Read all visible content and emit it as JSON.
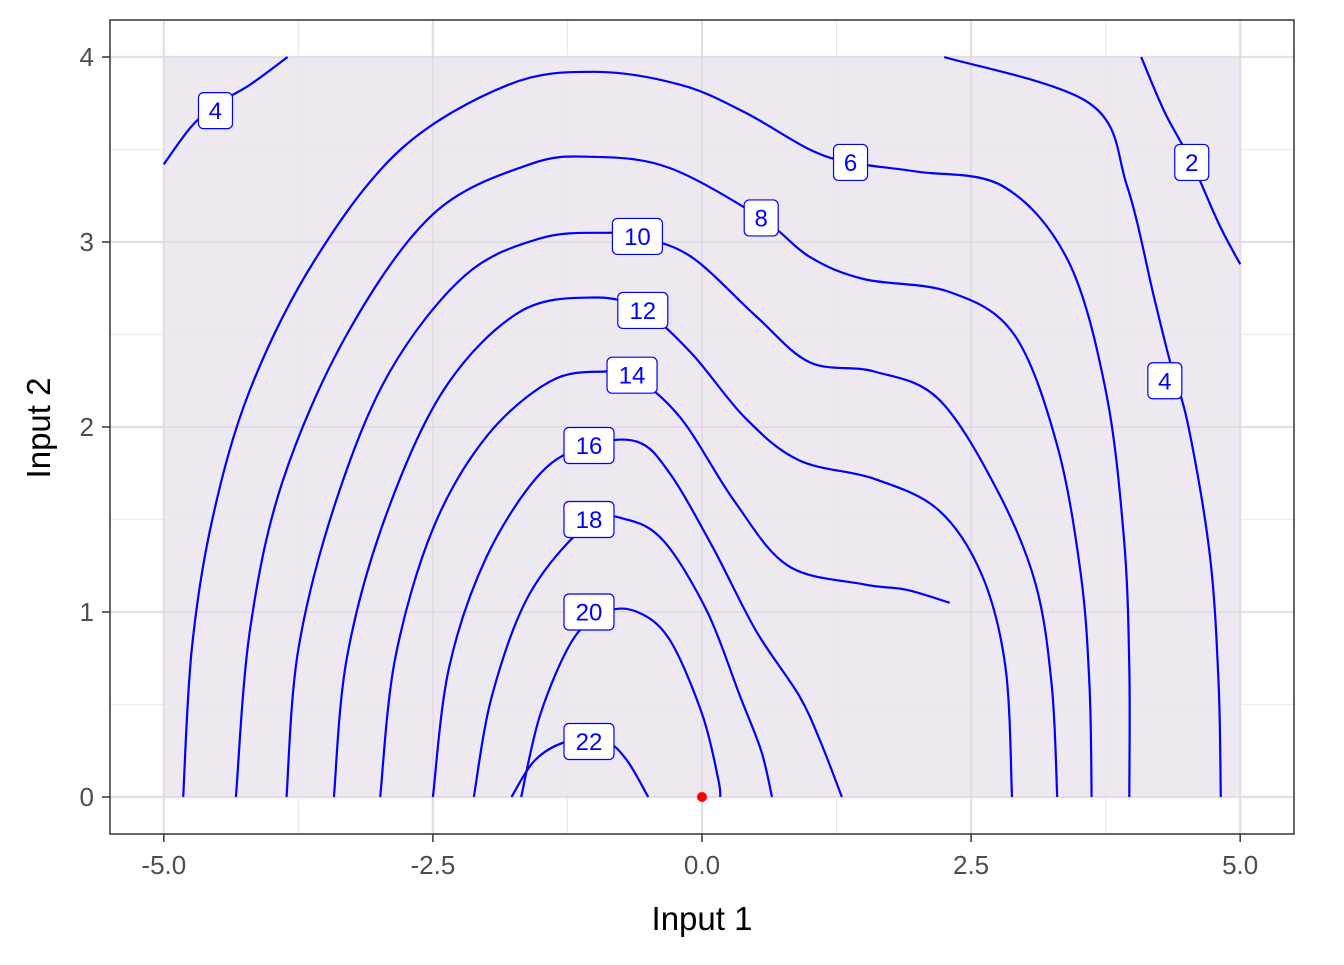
{
  "chart_data": {
    "type": "contour",
    "title": "",
    "xlabel": "Input 1",
    "ylabel": "Input 2",
    "xlim": [
      -5.5,
      5.5
    ],
    "ylim": [
      -0.2,
      4.2
    ],
    "region": {
      "x": [
        -5,
        5
      ],
      "y": [
        0,
        4
      ]
    },
    "x_ticks": [
      {
        "value": -5,
        "label": "-5.0"
      },
      {
        "value": -2.5,
        "label": "-2.5"
      },
      {
        "value": 0,
        "label": "0.0"
      },
      {
        "value": 2.5,
        "label": "2.5"
      },
      {
        "value": 5,
        "label": "5.0"
      }
    ],
    "y_ticks": [
      {
        "value": 0,
        "label": "0"
      },
      {
        "value": 1,
        "label": "1"
      },
      {
        "value": 2,
        "label": "2"
      },
      {
        "value": 3,
        "label": "3"
      },
      {
        "value": 4,
        "label": "4"
      }
    ],
    "grid": true,
    "colors": {
      "contour": "#0000ff",
      "region_fill": "#ebe4ee",
      "point": "#ff0000",
      "grid": "#ebebeb"
    },
    "point": {
      "x": 0,
      "y": 0
    },
    "contours": [
      {
        "level": 2,
        "label": "2",
        "label_pos": [
          4.55,
          3.43
        ],
        "points": [
          [
            4.08,
            4.0
          ],
          [
            4.3,
            3.7
          ],
          [
            4.55,
            3.43
          ],
          [
            4.8,
            3.1
          ],
          [
            5.0,
            2.88
          ]
        ]
      },
      {
        "level": 4,
        "label": "4",
        "label_pos": [
          -4.52,
          3.71
        ],
        "points": [
          [
            -5.0,
            3.42
          ],
          [
            -4.75,
            3.62
          ],
          [
            -4.52,
            3.74
          ],
          [
            -4.2,
            3.85
          ],
          [
            -3.85,
            4.0
          ]
        ]
      },
      {
        "level": 4,
        "label": "4",
        "label_pos": [
          4.3,
          2.25
        ],
        "points": [
          [
            4.82,
            0.0
          ],
          [
            4.8,
            0.6
          ],
          [
            4.72,
            1.3
          ],
          [
            4.52,
            2.0
          ],
          [
            4.35,
            2.35
          ],
          [
            4.2,
            2.7
          ],
          [
            3.95,
            3.3
          ],
          [
            3.6,
            3.75
          ],
          [
            2.25,
            4.0
          ]
        ]
      },
      {
        "level": 6,
        "label": "6",
        "label_pos": [
          1.38,
          3.43
        ],
        "points": [
          [
            -4.82,
            0.0
          ],
          [
            -4.74,
            0.8
          ],
          [
            -4.55,
            1.5
          ],
          [
            -4.2,
            2.2
          ],
          [
            -3.6,
            2.9
          ],
          [
            -2.8,
            3.5
          ],
          [
            -1.8,
            3.85
          ],
          [
            -1.0,
            3.92
          ],
          [
            -0.2,
            3.85
          ],
          [
            0.4,
            3.7
          ],
          [
            1.0,
            3.5
          ],
          [
            1.38,
            3.43
          ],
          [
            2.0,
            3.38
          ],
          [
            2.8,
            3.3
          ],
          [
            3.4,
            2.9
          ],
          [
            3.75,
            2.2
          ],
          [
            3.92,
            1.4
          ],
          [
            3.97,
            0.7
          ],
          [
            3.97,
            0.0
          ]
        ]
      },
      {
        "level": 8,
        "label": "8",
        "label_pos": [
          0.55,
          3.13
        ],
        "points": [
          [
            -4.33,
            0.0
          ],
          [
            -4.2,
            0.9
          ],
          [
            -3.9,
            1.7
          ],
          [
            -3.3,
            2.5
          ],
          [
            -2.5,
            3.15
          ],
          [
            -1.6,
            3.42
          ],
          [
            -1.0,
            3.46
          ],
          [
            -0.3,
            3.4
          ],
          [
            0.55,
            3.13
          ],
          [
            1.0,
            2.92
          ],
          [
            1.5,
            2.8
          ],
          [
            2.3,
            2.73
          ],
          [
            2.9,
            2.5
          ],
          [
            3.3,
            1.9
          ],
          [
            3.52,
            1.2
          ],
          [
            3.6,
            0.6
          ],
          [
            3.62,
            0.0
          ]
        ]
      },
      {
        "level": 10,
        "label": "10",
        "label_pos": [
          -0.6,
          3.03
        ],
        "points": [
          [
            -3.86,
            0.0
          ],
          [
            -3.75,
            0.8
          ],
          [
            -3.4,
            1.6
          ],
          [
            -2.9,
            2.3
          ],
          [
            -2.2,
            2.82
          ],
          [
            -1.5,
            3.02
          ],
          [
            -0.9,
            3.05
          ],
          [
            -0.6,
            3.03
          ],
          [
            -0.1,
            2.92
          ],
          [
            0.5,
            2.6
          ],
          [
            1.0,
            2.35
          ],
          [
            1.6,
            2.3
          ],
          [
            2.2,
            2.15
          ],
          [
            2.75,
            1.65
          ],
          [
            3.1,
            1.15
          ],
          [
            3.25,
            0.6
          ],
          [
            3.3,
            0.0
          ]
        ]
      },
      {
        "level": 12,
        "label": "12",
        "label_pos": [
          -0.55,
          2.63
        ],
        "points": [
          [
            -3.42,
            0.0
          ],
          [
            -3.3,
            0.75
          ],
          [
            -2.95,
            1.5
          ],
          [
            -2.4,
            2.2
          ],
          [
            -1.7,
            2.62
          ],
          [
            -1.0,
            2.7
          ],
          [
            -0.55,
            2.63
          ],
          [
            -0.1,
            2.4
          ],
          [
            0.4,
            2.05
          ],
          [
            0.9,
            1.82
          ],
          [
            1.6,
            1.72
          ],
          [
            2.2,
            1.55
          ],
          [
            2.6,
            1.2
          ],
          [
            2.82,
            0.7
          ],
          [
            2.88,
            0.0
          ]
        ]
      },
      {
        "level": 14,
        "label": "14",
        "label_pos": [
          -0.65,
          2.28
        ],
        "points": [
          [
            -2.99,
            0.0
          ],
          [
            -2.85,
            0.75
          ],
          [
            -2.5,
            1.45
          ],
          [
            -2.0,
            1.95
          ],
          [
            -1.4,
            2.25
          ],
          [
            -0.9,
            2.3
          ],
          [
            -0.65,
            2.28
          ],
          [
            -0.2,
            2.05
          ],
          [
            0.3,
            1.6
          ],
          [
            0.8,
            1.25
          ],
          [
            1.5,
            1.15
          ],
          [
            1.9,
            1.12
          ],
          [
            2.3,
            1.05
          ]
        ]
      },
      {
        "level": 16,
        "label": "16",
        "label_pos": [
          -1.05,
          1.9
        ],
        "points": [
          [
            -2.5,
            0.0
          ],
          [
            -2.35,
            0.7
          ],
          [
            -2.0,
            1.3
          ],
          [
            -1.5,
            1.75
          ],
          [
            -1.05,
            1.9
          ],
          [
            -0.6,
            1.92
          ],
          [
            -0.3,
            1.75
          ],
          [
            0.1,
            1.35
          ],
          [
            0.5,
            0.9
          ],
          [
            0.9,
            0.55
          ],
          [
            1.1,
            0.3
          ],
          [
            1.3,
            0.0
          ]
        ]
      },
      {
        "level": 18,
        "label": "18",
        "label_pos": [
          -1.05,
          1.5
        ],
        "points": [
          [
            -2.12,
            0.0
          ],
          [
            -1.95,
            0.55
          ],
          [
            -1.6,
            1.1
          ],
          [
            -1.05,
            1.48
          ],
          [
            -0.7,
            1.5
          ],
          [
            -0.35,
            1.38
          ],
          [
            0.05,
            1.0
          ],
          [
            0.35,
            0.55
          ],
          [
            0.55,
            0.25
          ],
          [
            0.65,
            0.0
          ]
        ]
      },
      {
        "level": 20,
        "label": "20",
        "label_pos": [
          -1.05,
          1.0
        ],
        "points": [
          [
            -1.68,
            0.0
          ],
          [
            -1.5,
            0.45
          ],
          [
            -1.2,
            0.85
          ],
          [
            -0.9,
            1.0
          ],
          [
            -0.6,
            1.0
          ],
          [
            -0.3,
            0.85
          ],
          [
            0.0,
            0.45
          ],
          [
            0.15,
            0.1
          ],
          [
            0.17,
            0.0
          ]
        ]
      },
      {
        "level": 22,
        "label": "22",
        "label_pos": [
          -1.05,
          0.3
        ],
        "points": [
          [
            -1.77,
            0.0
          ],
          [
            -1.55,
            0.2
          ],
          [
            -1.25,
            0.3
          ],
          [
            -0.9,
            0.3
          ],
          [
            -0.7,
            0.2
          ],
          [
            -0.5,
            0.0
          ]
        ]
      }
    ]
  }
}
